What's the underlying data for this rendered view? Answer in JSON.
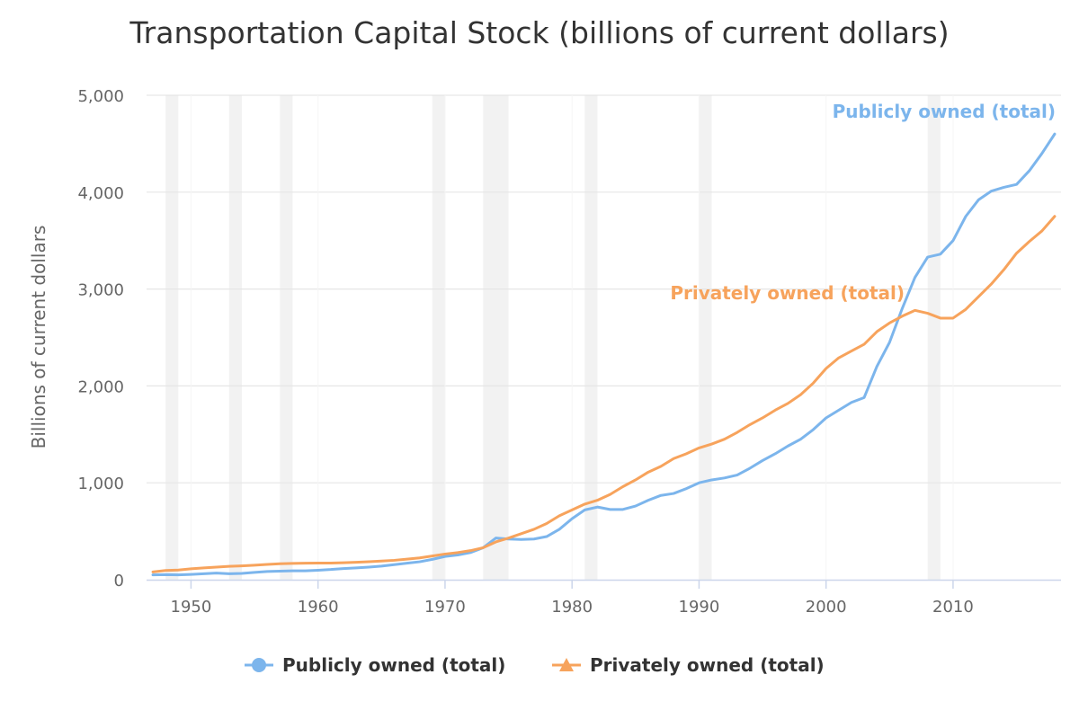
{
  "chart_data": {
    "type": "line",
    "title": "Transportation Capital Stock (billions of current dollars)",
    "xlabel": "",
    "ylabel": "Billions of current dollars",
    "xlim": [
      1946.5,
      2018.5
    ],
    "ylim": [
      0,
      5000
    ],
    "x_ticks": [
      1950,
      1960,
      1970,
      1980,
      1990,
      2000,
      2010
    ],
    "x_tick_labels": [
      "1950",
      "1960",
      "1970",
      "1980",
      "1990",
      "2000",
      "2010"
    ],
    "y_ticks": [
      0,
      1000,
      2000,
      3000,
      4000,
      5000
    ],
    "y_tick_labels": [
      "0",
      "1,000",
      "2,000",
      "3,000",
      "4,000",
      "5,000"
    ],
    "grid": "horizontal",
    "legend_position": "bottom-center",
    "recession_bands": [
      [
        1948,
        1949
      ],
      [
        1953,
        1954
      ],
      [
        1957,
        1958
      ],
      [
        1969,
        1970
      ],
      [
        1973,
        1975
      ],
      [
        1981,
        1982
      ],
      [
        1990,
        1991
      ],
      [
        2008,
        2009
      ]
    ],
    "recession_color": "#f2f2f2",
    "x": [
      1947,
      1948,
      1949,
      1950,
      1951,
      1952,
      1953,
      1954,
      1955,
      1956,
      1957,
      1958,
      1959,
      1960,
      1961,
      1962,
      1963,
      1964,
      1965,
      1966,
      1967,
      1968,
      1969,
      1970,
      1971,
      1972,
      1973,
      1974,
      1975,
      1976,
      1977,
      1978,
      1979,
      1980,
      1981,
      1982,
      1983,
      1984,
      1985,
      1986,
      1987,
      1988,
      1989,
      1990,
      1991,
      1992,
      1993,
      1994,
      1995,
      1996,
      1997,
      1998,
      1999,
      2000,
      2001,
      2002,
      2003,
      2004,
      2005,
      2006,
      2007,
      2008,
      2009,
      2010,
      2011,
      2012,
      2013,
      2014,
      2015,
      2016,
      2017,
      2018
    ],
    "series": [
      {
        "name": "Publicly owned (total)",
        "color": "#7cb5ec",
        "marker": "circle",
        "values": [
          50,
          52,
          50,
          55,
          62,
          68,
          62,
          65,
          75,
          85,
          88,
          92,
          92,
          98,
          105,
          115,
          122,
          130,
          140,
          155,
          170,
          185,
          210,
          240,
          255,
          280,
          330,
          430,
          420,
          415,
          420,
          445,
          520,
          630,
          720,
          750,
          725,
          725,
          760,
          820,
          870,
          890,
          940,
          1000,
          1030,
          1050,
          1080,
          1150,
          1230,
          1300,
          1380,
          1450,
          1550,
          1670,
          1750,
          1830,
          1880,
          2200,
          2450,
          2800,
          3120,
          3330,
          3360,
          3500,
          3750,
          3920,
          4010,
          4050,
          4080,
          4220,
          4400,
          4600
        ]
      },
      {
        "name": "Privately owned (total)",
        "color": "#f7a35c",
        "marker": "triangle",
        "values": [
          80,
          95,
          100,
          112,
          122,
          130,
          138,
          143,
          150,
          158,
          165,
          168,
          170,
          172,
          172,
          175,
          180,
          185,
          192,
          200,
          212,
          225,
          245,
          265,
          280,
          300,
          330,
          390,
          430,
          475,
          520,
          580,
          660,
          720,
          780,
          820,
          880,
          960,
          1030,
          1110,
          1170,
          1250,
          1300,
          1360,
          1400,
          1450,
          1520,
          1600,
          1670,
          1750,
          1820,
          1910,
          2030,
          2180,
          2290,
          2360,
          2430,
          2560,
          2650,
          2720,
          2780,
          2750,
          2700,
          2700,
          2790,
          2920,
          3050,
          3200,
          3370,
          3490,
          3600,
          3750
        ]
      }
    ],
    "series_labels": [
      "Publicly owned (total)",
      "Privately owned (total)"
    ]
  }
}
